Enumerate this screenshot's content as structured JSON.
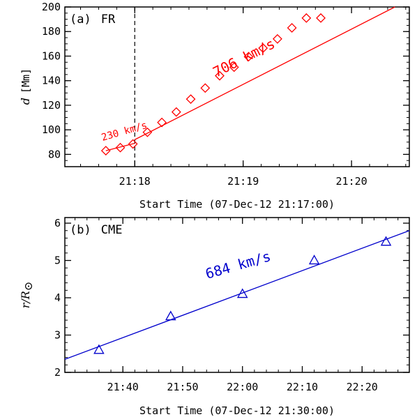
{
  "chart_data": [
    {
      "type": "scatter",
      "panel_label": "(a)",
      "panel_name": "FR",
      "xlabel": "Start Time (07-Dec-12 21:17:00)",
      "ylabel_symbol": "d",
      "ylabel_unit": "[Mm]",
      "xlim": [
        21.3,
        212.0
      ],
      "ylim": [
        70,
        200
      ],
      "x_ticks": [
        {
          "value": 60,
          "label": "21:18"
        },
        {
          "value": 120,
          "label": "21:19"
        },
        {
          "value": 180,
          "label": "21:20"
        }
      ],
      "y_ticks": [
        80,
        100,
        120,
        140,
        160,
        180,
        200
      ],
      "vline_x": 60,
      "series": [
        {
          "marker": "diamond",
          "color": "#ff0000",
          "x": [
            44,
            52,
            59,
            67,
            75,
            83,
            91,
            99,
            107,
            115,
            123,
            131,
            139,
            147,
            155,
            163
          ],
          "y": [
            83,
            85.5,
            88.5,
            98,
            106,
            114.5,
            125,
            134,
            144,
            151,
            159.5,
            166.5,
            174,
            183,
            191,
            191
          ]
        }
      ],
      "fit_lines": [
        {
          "color": "#ff0000",
          "label": "230 km/s",
          "from": [
            44,
            83
          ],
          "to": [
            60,
            89
          ]
        },
        {
          "color": "#ff0000",
          "label": "706 km/s",
          "from": [
            60,
            92
          ],
          "to": [
            204,
            200
          ]
        }
      ]
    },
    {
      "type": "scatter",
      "panel_label": "(b)",
      "panel_name": "CME",
      "xlabel": "Start Time (07-Dec-12 21:30:00)",
      "ylabel_symbol": "r/R",
      "ylabel_sub": "⊙",
      "xlim": [
        30.3,
        87.9
      ],
      "ylim": [
        2,
        6.15
      ],
      "x_ticks": [
        {
          "value": 40,
          "label": "21:40"
        },
        {
          "value": 50,
          "label": "21:50"
        },
        {
          "value": 60,
          "label": "22:00"
        },
        {
          "value": 70,
          "label": "22:10"
        },
        {
          "value": 80,
          "label": "22:20"
        }
      ],
      "y_ticks": [
        2,
        3,
        4,
        5,
        6
      ],
      "series": [
        {
          "marker": "triangle",
          "color": "#0000cc",
          "x": [
            36,
            48,
            60,
            72,
            84
          ],
          "y": [
            2.6,
            3.5,
            4.1,
            5.0,
            5.5
          ]
        }
      ],
      "fit_lines": [
        {
          "color": "#0000cc",
          "label": "684 km/s",
          "from": [
            30.3,
            2.35
          ],
          "to": [
            87.9,
            5.8
          ]
        }
      ]
    }
  ]
}
